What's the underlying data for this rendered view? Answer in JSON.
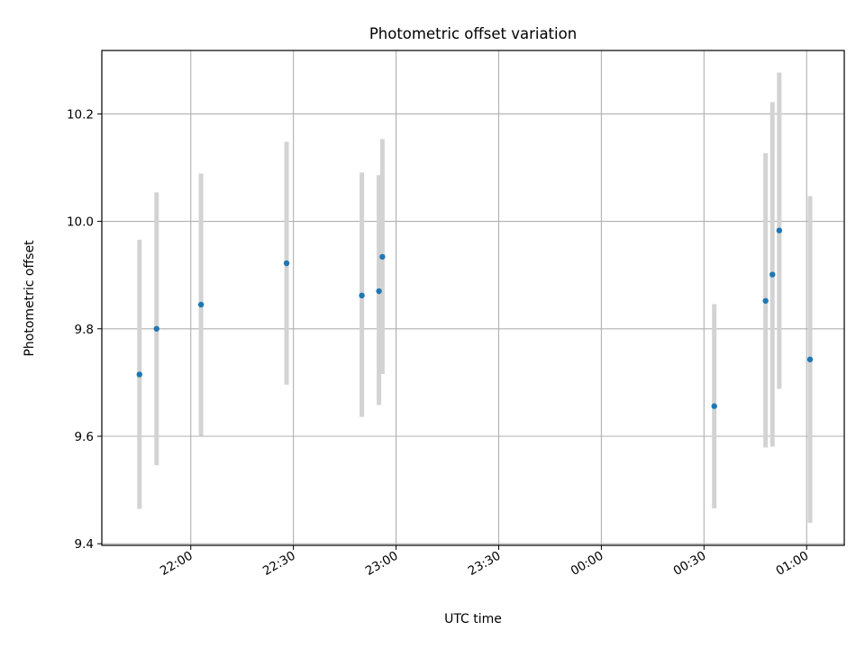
{
  "chart_data": {
    "type": "scatter",
    "title": "Photometric offset variation",
    "xlabel": "UTC time",
    "ylabel": "Photometric offset",
    "x_ticks": [
      "22:00",
      "22:30",
      "23:00",
      "23:30",
      "00:00",
      "00:30",
      "01:00"
    ],
    "y_ticks": [
      "9.4",
      "9.6",
      "9.8",
      "10.0",
      "10.2"
    ],
    "x_range": [
      "21:34",
      "01:11"
    ],
    "ylim": [
      9.397,
      10.318
    ],
    "grid": true,
    "marker_color": "#1f77b4",
    "errorbar_color": "#d3d3d3",
    "points": [
      {
        "time": "21:45",
        "y": 9.715,
        "err_low": 9.465,
        "err_high": 9.966
      },
      {
        "time": "21:50",
        "y": 9.8,
        "err_low": 9.546,
        "err_high": 10.054
      },
      {
        "time": "22:03",
        "y": 9.845,
        "err_low": 9.601,
        "err_high": 10.089
      },
      {
        "time": "22:28",
        "y": 9.922,
        "err_low": 9.696,
        "err_high": 10.148
      },
      {
        "time": "22:50",
        "y": 9.862,
        "err_low": 9.636,
        "err_high": 10.091
      },
      {
        "time": "22:55",
        "y": 9.87,
        "err_low": 9.658,
        "err_high": 10.086
      },
      {
        "time": "22:56",
        "y": 9.934,
        "err_low": 9.716,
        "err_high": 10.153
      },
      {
        "time": "00:33",
        "y": 9.656,
        "err_low": 9.466,
        "err_high": 9.846
      },
      {
        "time": "00:48",
        "y": 9.852,
        "err_low": 9.579,
        "err_high": 10.127
      },
      {
        "time": "00:50",
        "y": 9.901,
        "err_low": 9.581,
        "err_high": 10.222
      },
      {
        "time": "00:52",
        "y": 9.983,
        "err_low": 9.688,
        "err_high": 10.277
      },
      {
        "time": "01:01",
        "y": 9.743,
        "err_low": 9.439,
        "err_high": 10.047
      }
    ]
  }
}
